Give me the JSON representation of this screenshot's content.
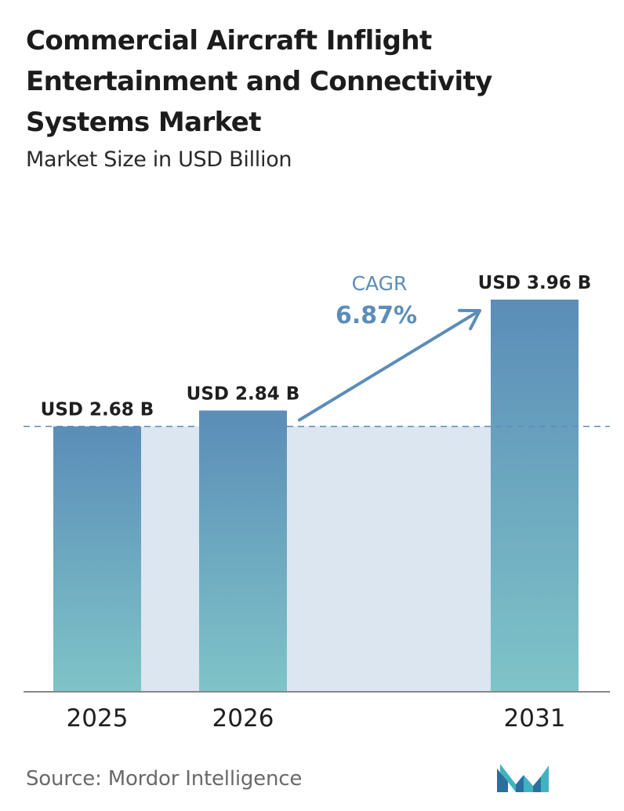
{
  "header": {
    "title": "Commercial Aircraft Inflight Entertainment and Connectivity Systems Market",
    "subtitle": "Market Size in USD Billion"
  },
  "footer": {
    "source": "Source: Mordor Intelligence",
    "logo_icon": "mordor-intelligence-logo-icon"
  },
  "cagr": {
    "label": "CAGR",
    "value": "6.87%"
  },
  "colors": {
    "bar_top": "#5b8db8",
    "bar_bottom": "#7fc4c8",
    "band": "#dbe6f0",
    "arrow": "#5b8db8",
    "dashed": "#5b8db8",
    "axis": "#888888",
    "cagr_text": "#5b8db8"
  },
  "chart_data": {
    "type": "bar",
    "categories": [
      "2025",
      "2026",
      "2031"
    ],
    "values": [
      2.68,
      2.84,
      3.96
    ],
    "labels": [
      "USD 2.68 B",
      "USD 2.84 B",
      "USD 3.96 B"
    ],
    "title": "Commercial Aircraft Inflight Entertainment and Connectivity Systems Market",
    "subtitle": "Market Size in USD Billion",
    "xlabel": "",
    "ylabel": "",
    "ylim": [
      0,
      3.96
    ],
    "grid": false,
    "legend": "none",
    "annotations": [
      "CAGR",
      "6.87%"
    ]
  }
}
